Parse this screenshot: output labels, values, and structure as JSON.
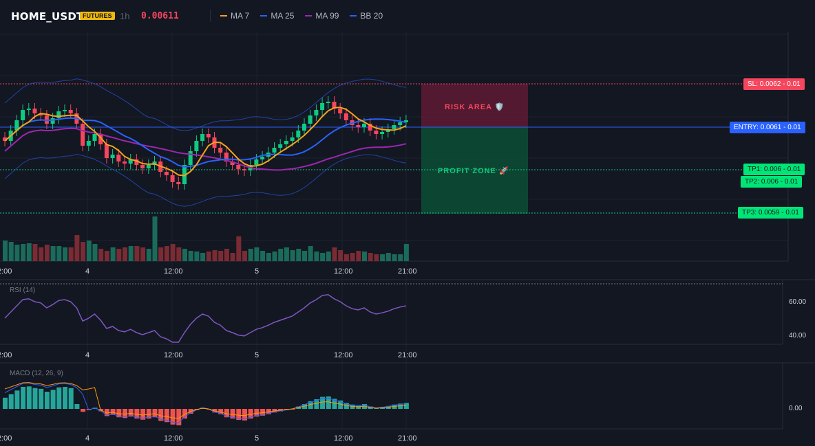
{
  "header": {
    "symbol": "HOME_USDT",
    "badge": "FUTURES",
    "timeframe": "1h",
    "price": "0.00611",
    "legend": [
      {
        "label": "MA 7",
        "color": "#f7a21b"
      },
      {
        "label": "MA 25",
        "color": "#2962ff"
      },
      {
        "label": "MA 99",
        "color": "#9c27b0"
      },
      {
        "label": "BB 20",
        "color": "#2962ff"
      }
    ]
  },
  "levels": {
    "sl": "SL: 0.0062 - 0.01",
    "entry": "ENTRY: 0.0061 - 0.01",
    "tp1": "TP1: 0.006 - 0.01",
    "tp2": "TP2: 0.006 - 0.01",
    "tp3": "TP3: 0.0059 - 0.01"
  },
  "zones": {
    "risk": "RISK AREA 🛡️",
    "profit": "PROFIT ZONE 🚀"
  },
  "time_axis": [
    "2:00",
    "4",
    "12:00",
    "5",
    "12:00",
    "21:00"
  ],
  "rsi": {
    "label": "RSI (14)",
    "ticks": [
      "60.00",
      "40.00"
    ]
  },
  "macd": {
    "label": "MACD (12, 26, 9)",
    "ticks": [
      "0.00"
    ]
  },
  "colors": {
    "up": "#0ecb81",
    "down": "#f6465d",
    "ma7": "#f7a21b",
    "ma25": "#2962ff",
    "ma99": "#9c27b0",
    "bb": "#2962ff"
  }
}
